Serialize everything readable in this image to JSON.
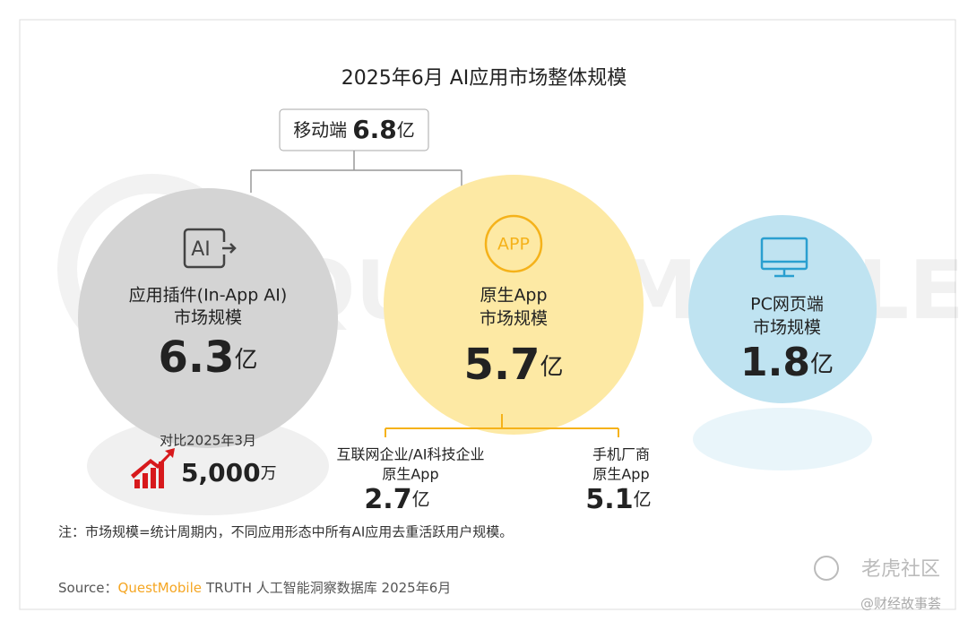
{
  "title": "2025年6月 AI应用市场整体规模",
  "mobile": {
    "label": "移动端",
    "value": "6.8",
    "unit": "亿"
  },
  "in_app": {
    "icon": "AI",
    "label_line1": "应用插件(In-App AI)",
    "label_line2": "市场规模",
    "value": "6.3",
    "unit": "亿",
    "compare_label": "对比2025年3月",
    "compare_value": "5,000",
    "compare_unit": "万"
  },
  "native_app": {
    "icon": "APP",
    "label_line1": "原生App",
    "label_line2": "市场规模",
    "value": "5.7",
    "unit": "亿",
    "children": [
      {
        "line1": "互联网企业/AI科技企业",
        "line2": "原生App",
        "value": "2.7",
        "unit": "亿"
      },
      {
        "line1": "手机厂商",
        "line2": "原生App",
        "value": "5.1",
        "unit": "亿"
      }
    ]
  },
  "pc_web": {
    "label_line1": "PC网页端",
    "label_line2": "市场规模",
    "value": "1.8",
    "unit": "亿"
  },
  "note": "注：市场规模=统计周期内，不同应用形态中所有AI应用去重活跃用户规模。",
  "source": {
    "prefix": "Source：",
    "brand": "QuestMobile",
    "rest": "TRUTH 人工智能洞察数据库 2025年6月"
  },
  "watermark": {
    "site": "老虎社区",
    "author": "@财经故事荟"
  }
}
